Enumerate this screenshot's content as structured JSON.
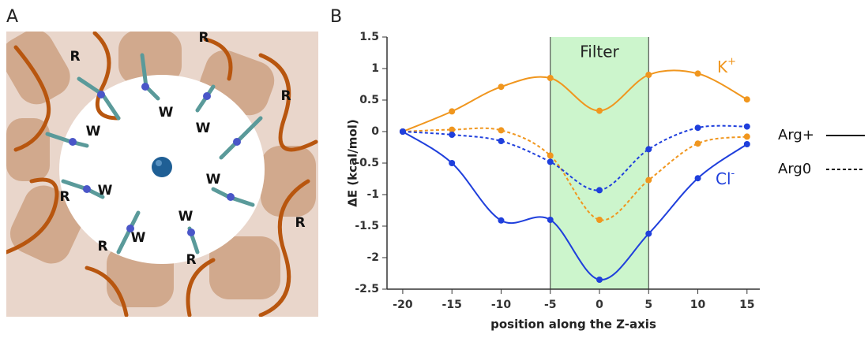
{
  "panel_a": {
    "letter": "A",
    "labels": [
      "R",
      "R",
      "R",
      "R",
      "R",
      "R",
      "R",
      "W",
      "W",
      "W",
      "W",
      "W",
      "W",
      "W"
    ]
  },
  "chart_data": {
    "type": "line",
    "letter": "B",
    "x_label": "position along the Z-axis",
    "y_label": "ΔE (kcal/mol)",
    "x": [
      -20,
      -15,
      -10,
      -5,
      0,
      5,
      10,
      15
    ],
    "series": [
      {
        "color": "#f0961e",
        "dash": "solid",
        "values": [
          0,
          0.32,
          0.71,
          0.85,
          0.33,
          0.9,
          0.92,
          0.51
        ]
      },
      {
        "color": "#f0961e",
        "dash": "dashed",
        "values": [
          0,
          0.03,
          0.02,
          -0.38,
          -1.4,
          -0.77,
          -0.19,
          -0.08
        ]
      },
      {
        "color": "#1f3fdc",
        "dash": "solid",
        "values": [
          0,
          -0.5,
          -1.41,
          -1.4,
          -2.35,
          -1.62,
          -0.74,
          -0.2
        ]
      },
      {
        "color": "#1f3fdc",
        "dash": "dashed",
        "values": [
          0,
          -0.05,
          -0.15,
          -0.48,
          -0.93,
          -0.28,
          0.06,
          0.08
        ]
      }
    ],
    "annotations": [
      {
        "text": "K",
        "sup": "+",
        "color": "#f0961e"
      },
      {
        "text": "Cl",
        "sup": "-",
        "color": "#1f3fdc"
      }
    ],
    "shade": {
      "from": -5,
      "to": 5,
      "label": "Filter",
      "color": "#ccf5cc"
    },
    "legend": [
      {
        "label": "Arg+",
        "dash": "solid"
      },
      {
        "label": "Arg0",
        "dash": "dashed"
      }
    ],
    "xlim": [
      -21.6,
      16.3
    ],
    "ylim": [
      -2.5,
      1.5
    ],
    "xticks": [
      -20,
      -15,
      -10,
      -5,
      0,
      5,
      10,
      15
    ],
    "yticks": [
      -2.5,
      -2,
      -1.5,
      -1,
      -0.5,
      0,
      0.5,
      1,
      1.5
    ]
  }
}
